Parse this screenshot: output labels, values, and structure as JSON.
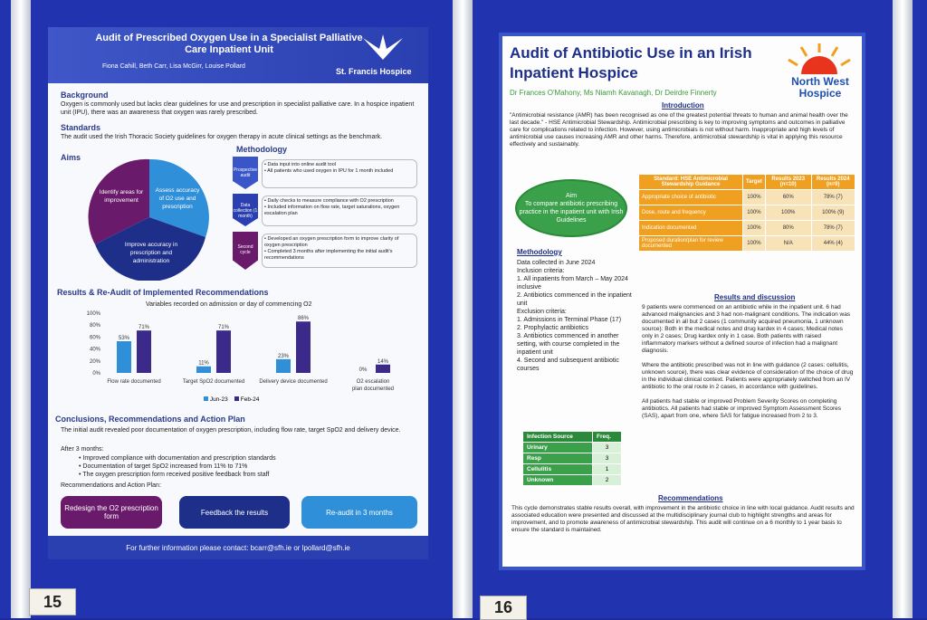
{
  "poster1": {
    "title": "Audit of Prescribed Oxygen Use in a Specialist Palliative Care Inpatient Unit",
    "authors": "Fiona Cahill, Beth Carr, Lisa McGirr, Louise Pollard",
    "hospice": "St. Francis Hospice",
    "background_h": "Background",
    "background": "Oxygen is commonly used but lacks clear guidelines for use and prescription in specialist palliative care. In a hospice inpatient unit (IPU), there was an awareness that oxygen was rarely prescribed.",
    "standards_h": "Standards",
    "standards": "The audit used the Irish Thoracic Society guidelines for oxygen therapy in acute clinical settings as the benchmark.",
    "aims_h": "Aims",
    "aims": [
      "Identify areas for improvement",
      "Assess accuracy of O2 use and prescription",
      "Improve accuracy in prescription and administration"
    ],
    "method_h": "Methodology",
    "methods": [
      {
        "label": "Prospective audit",
        "text": "• Data input into online audit tool\n• All patients who used oxygen in IPU for 1 month included"
      },
      {
        "label": "Data collection (1 month)",
        "text": "• Daily checks to measure compliance with O2 prescription\n• Included information on flow rate, target saturations, oxygen escalation plan"
      },
      {
        "label": "Second cycle",
        "text": "• Developed an oxygen prescription form to improve clarity of oxygen prescription\n• Completed 3 months after implementing the initial audit's recommendations"
      }
    ],
    "results_h": "Results & Re-Audit of Implemented Recommendations",
    "chart_data": {
      "type": "bar",
      "title": "Variables recorded on admission or day of commencing O2",
      "categories": [
        "Flow rate documented",
        "Target SpO2 documented",
        "Delivery device documented",
        "O2 escalation plan documented"
      ],
      "series": [
        {
          "name": "Jun-23",
          "values": [
            53,
            11,
            23,
            0
          ]
        },
        {
          "name": "Feb-24",
          "values": [
            71,
            71,
            86,
            14
          ]
        }
      ],
      "yticks": [
        "100%",
        "80%",
        "60%",
        "40%",
        "20%",
        "0%"
      ],
      "ylim": [
        0,
        100
      ],
      "colors": [
        "#2f8fd8",
        "#3b2a8a"
      ]
    },
    "concl_h": "Conclusions, Recommendations and Action Plan",
    "concl1": "The initial audit revealed poor documentation of oxygen prescription, including flow rate, target SpO2 and delivery device.",
    "concl2": "After 3 months:",
    "concl_items": [
      "Improved compliance with documentation and prescription standards",
      "Documentation of target SpO2 increased from 11% to 71%",
      "The oxygen prescription form received positive feedback from staff"
    ],
    "concl3": "Recommendations and Action Plan:",
    "actions": [
      "Redesign the O2 prescription form",
      "Feedback the results",
      "Re-audit in 3 months"
    ],
    "footer": "For further information please contact: bcarr@sfh.ie or lpollard@sfh.ie"
  },
  "poster2": {
    "title": "Audit of Antibiotic Use in an Irish Inpatient Hospice",
    "authors": "Dr Frances O'Mahony, Ms Niamh Kavanagh, Dr Deirdre Finnerty",
    "logo": "North West Hospice",
    "intro_h": "Introduction",
    "intro": "\"Antimicrobial resistance (AMR) has been recognised as one of the greatest potential threats to human and animal health over the last decade.\" - HSE Antimicrobial Stewardship. Antimicrobial prescribing is key to improving symptoms and outcomes in palliative care for complications related to infection. However, using antimicrobials is not without harm. Inappropriate and high levels of antimicrobial use causes increasing AMR and other harms. Therefore, antimicrobial stewardship is vital in applying this resource effectively and sustainably.",
    "aim": "Aim\nTo compare antibiotic prescribing practice in the inpatient unit with Irish Guidelines",
    "std_head": [
      "Standard: HSE Antimicrobial Stewardship Guidance",
      "Target",
      "Results 2023 (n=10)",
      "Results 2024 (n=9)"
    ],
    "std_rows": [
      [
        "Appropriate choice of antibiotic",
        "100%",
        "60%",
        "78% (7)"
      ],
      [
        "Dose, route and frequency",
        "100%",
        "100%",
        "100% (9)"
      ],
      [
        "Indication documented",
        "100%",
        "80%",
        "78% (7)"
      ],
      [
        "Proposed duration/plan for review documented",
        "100%",
        "N/A",
        "44% (4)"
      ]
    ],
    "method_h": "Methodology",
    "method": "Data collected in June 2024\nInclusion criteria:\n1. All inpatients from March – May 2024 inclusive\n2. Antibiotics commenced in the inpatient unit\nExclusion criteria:\n1. Admissions in Terminal Phase (17)\n2. Prophylactic antibiotics\n3. Antibiotics commenced in another setting, with course completed in the inpatient unit\n4. Second and subsequent antibiotic courses",
    "inf_head": [
      "Infection Source",
      "Freq."
    ],
    "inf_rows": [
      [
        "Urinary",
        "3"
      ],
      [
        "Resp",
        "3"
      ],
      [
        "Cellulitis",
        "1"
      ],
      [
        "Unknown",
        "2"
      ]
    ],
    "results_h": "Results and discussion",
    "results": "9 patients were commenced on an antibiotic while in the inpatient unit. 6 had advanced malignancies and 3 had non-malignant conditions. The indication was documented in all but 2 cases (1 community acquired pneumonia, 1 unknown source): Both in the medical notes and drug kardex in 4 cases; Medical notes only in 2 cases; Drug kardex only in 1 case. Both patients with raised inflammatory markers without a defined source of infection had a malignant diagnosis.\n\nWhere the antibiotic prescribed was not in line with guidance (2 cases: cellulitis, unknown source), there was clear evidence of consideration of the choice of drug in the individual clinical context. Patients were appropriately switched from an IV antibiotic to the oral route in 2 cases, in accordance with guidelines.\n\nAll patients had stable or improved Problem Severity Scores on completing antibiotics. All patients had stable or improved Symptom Assessment Scores (SAS), apart from one, where SAS for fatigue increased from 2 to 3.",
    "rec_h": "Recommendations",
    "rec": "This cycle demonstrates stable results overall, with improvement in the antibiotic choice in line with local guidance. Audit results and associated education were presented and discussed at the multidisciplinary journal club to highlight strengths and areas for improvement, and to promote awareness of antimicrobial stewardship. This audit will continue on a 6 monthly to 1 year basis to ensure the standard is maintained."
  },
  "tags": [
    "15",
    "16"
  ]
}
